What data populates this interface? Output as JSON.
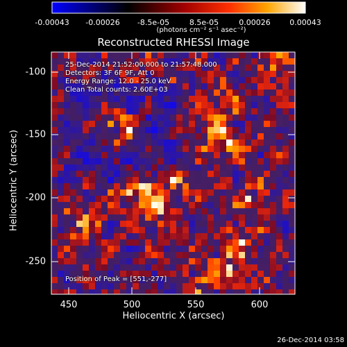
{
  "colorbar": {
    "ticks": [
      "-0.00043",
      "-0.00026",
      "-8.5e-05",
      "8.5e-05",
      "0.00026",
      "0.00043"
    ],
    "units": "(photons cm⁻² s⁻¹ asec⁻²)",
    "palette_stops": [
      "#0000ff",
      "#000000",
      "#ff0000",
      "#ffa500",
      "#ffffff"
    ]
  },
  "image": {
    "title": "Reconstructed RHESSI Image",
    "time_range": "25-Dec-2014 21:52:00.000 to 21:57:48.000",
    "detectors": "Detectors: 3F 6F 9F, Att 0",
    "energy_range": "Energy Range: 12.0 - 25.0 keV",
    "clean_counts": "Clean     Total counts: 2.60E+03",
    "peak_position": "Position of Peak = [551,-277]",
    "x_ticks": [
      "450",
      "500",
      "550",
      "600"
    ],
    "y_ticks": [
      "-100",
      "-150",
      "-200",
      "-250"
    ],
    "xlabel": "Heliocentric X (arcsec)",
    "ylabel": "Heliocentric Y (arcsec)"
  },
  "footer": {
    "date": "26-Dec-2014 03:58"
  }
}
